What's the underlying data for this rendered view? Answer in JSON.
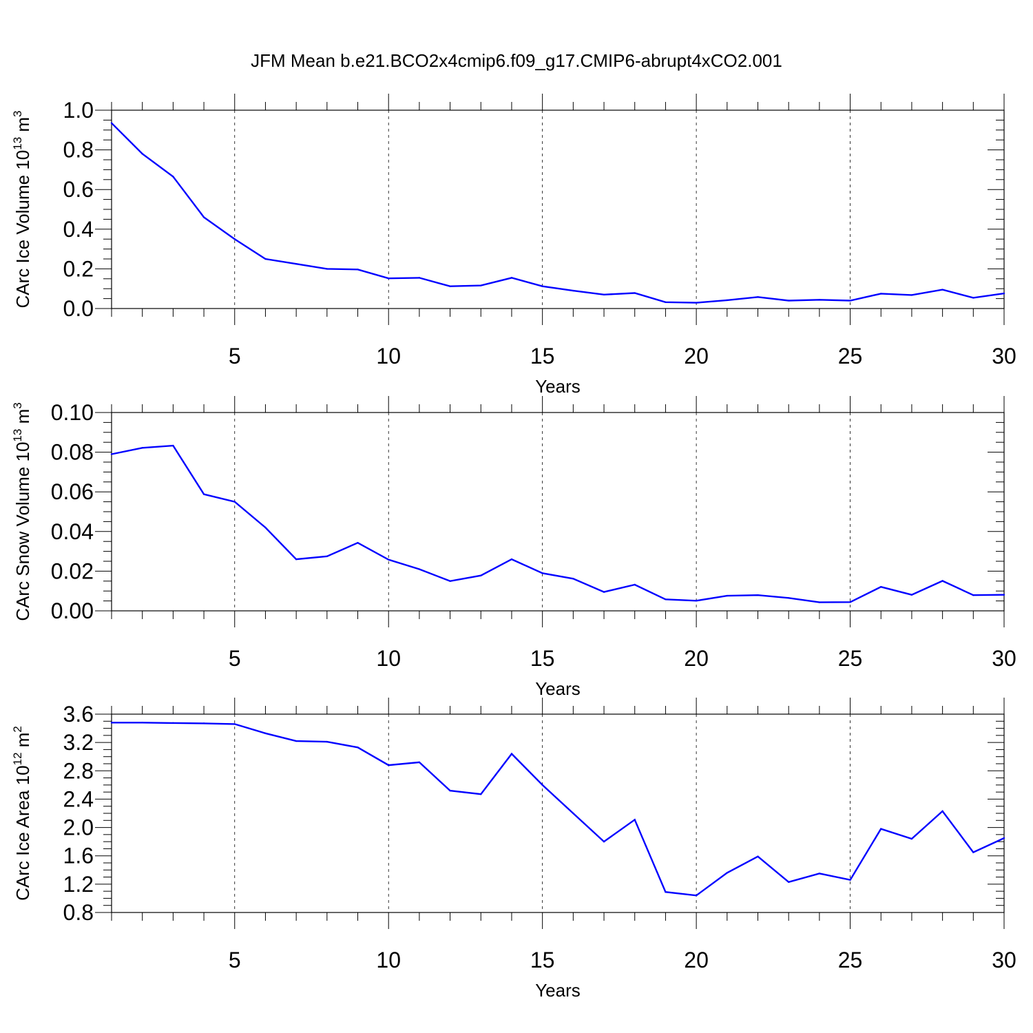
{
  "title": "JFM Mean b.e21.BCO2x4cmip6.f09_g17.CMIP6-abrupt4xCO2.001",
  "colors": {
    "line": "#0000ff",
    "frame": "#000000",
    "grid": "#000000"
  },
  "chart_data": [
    {
      "type": "line",
      "ylabel_main": "CArc Ice Volume 10",
      "ylabel_exp1": "13",
      "ylabel_mid": " m",
      "ylabel_exp2": "3",
      "xlabel": "Years",
      "xlim": [
        1,
        30
      ],
      "ylim": [
        0,
        1.0
      ],
      "x_ticks": [
        5,
        10,
        15,
        20,
        25,
        30
      ],
      "x_tick_labels": [
        "5",
        "10",
        "15",
        "20",
        "25",
        "30"
      ],
      "y_ticks": [
        0,
        0.2,
        0.4,
        0.6,
        0.8,
        1.0
      ],
      "y_tick_labels": [
        "0.0",
        "0.2",
        "0.4",
        "0.6",
        "0.8",
        "1.0"
      ],
      "y_minor_step": 0.05,
      "grid": "vertical dashed",
      "x": [
        1,
        2,
        3,
        4,
        5,
        6,
        7,
        8,
        9,
        10,
        11,
        12,
        13,
        14,
        15,
        16,
        17,
        18,
        19,
        20,
        21,
        22,
        23,
        24,
        25,
        26,
        27,
        28,
        29,
        30
      ],
      "values": [
        0.935,
        0.78,
        0.665,
        0.46,
        0.35,
        0.25,
        0.225,
        0.2,
        0.197,
        0.152,
        0.155,
        0.112,
        0.116,
        0.155,
        0.112,
        0.09,
        0.07,
        0.078,
        0.032,
        0.029,
        0.042,
        0.058,
        0.04,
        0.044,
        0.04,
        0.075,
        0.068,
        0.095,
        0.054,
        0.076
      ]
    },
    {
      "type": "line",
      "ylabel_main": "CArc Snow Volume 10",
      "ylabel_exp1": "13",
      "ylabel_mid": " m",
      "ylabel_exp2": "3",
      "xlabel": "Years",
      "xlim": [
        1,
        30
      ],
      "ylim": [
        0,
        0.1
      ],
      "x_ticks": [
        5,
        10,
        15,
        20,
        25,
        30
      ],
      "x_tick_labels": [
        "5",
        "10",
        "15",
        "20",
        "25",
        "30"
      ],
      "y_ticks": [
        0,
        0.02,
        0.04,
        0.06,
        0.08,
        0.1
      ],
      "y_tick_labels": [
        "0.00",
        "0.02",
        "0.04",
        "0.06",
        "0.08",
        "0.10"
      ],
      "y_minor_step": 0.005,
      "grid": "vertical dashed",
      "x": [
        1,
        2,
        3,
        4,
        5,
        6,
        7,
        8,
        9,
        10,
        11,
        12,
        13,
        14,
        15,
        16,
        17,
        18,
        19,
        20,
        21,
        22,
        23,
        24,
        25,
        26,
        27,
        28,
        29,
        30
      ],
      "values": [
        0.079,
        0.0822,
        0.0833,
        0.0588,
        0.055,
        0.042,
        0.026,
        0.0275,
        0.0343,
        0.0258,
        0.021,
        0.015,
        0.0178,
        0.026,
        0.019,
        0.0162,
        0.0095,
        0.0132,
        0.0058,
        0.0051,
        0.0076,
        0.0079,
        0.0065,
        0.0043,
        0.0044,
        0.0121,
        0.0081,
        0.0151,
        0.0079,
        0.0081
      ]
    },
    {
      "type": "line",
      "ylabel_main": "CArc Ice Area 10",
      "ylabel_exp1": "12",
      "ylabel_mid": " m",
      "ylabel_exp2": "2",
      "xlabel": "Years",
      "xlim": [
        1,
        30
      ],
      "ylim": [
        0.8,
        3.6
      ],
      "x_ticks": [
        5,
        10,
        15,
        20,
        25,
        30
      ],
      "x_tick_labels": [
        "5",
        "10",
        "15",
        "20",
        "25",
        "30"
      ],
      "y_ticks": [
        0.8,
        1.2,
        1.6,
        2.0,
        2.4,
        2.8,
        3.2,
        3.6
      ],
      "y_tick_labels": [
        "0.8",
        "1.2",
        "1.6",
        "2.0",
        "2.4",
        "2.8",
        "3.2",
        "3.6"
      ],
      "y_minor_step": 0.1,
      "grid": "vertical dashed",
      "x": [
        1,
        2,
        3,
        4,
        5,
        6,
        7,
        8,
        9,
        10,
        11,
        12,
        13,
        14,
        15,
        16,
        17,
        18,
        19,
        20,
        21,
        22,
        23,
        24,
        25,
        26,
        27,
        28,
        29,
        30
      ],
      "values": [
        3.48,
        3.48,
        3.475,
        3.47,
        3.46,
        3.33,
        3.22,
        3.21,
        3.13,
        2.88,
        2.92,
        2.52,
        2.47,
        3.04,
        2.6,
        2.2,
        1.8,
        2.11,
        1.09,
        1.04,
        1.36,
        1.59,
        1.23,
        1.35,
        1.26,
        1.98,
        1.84,
        2.23,
        1.65,
        1.85
      ]
    }
  ]
}
